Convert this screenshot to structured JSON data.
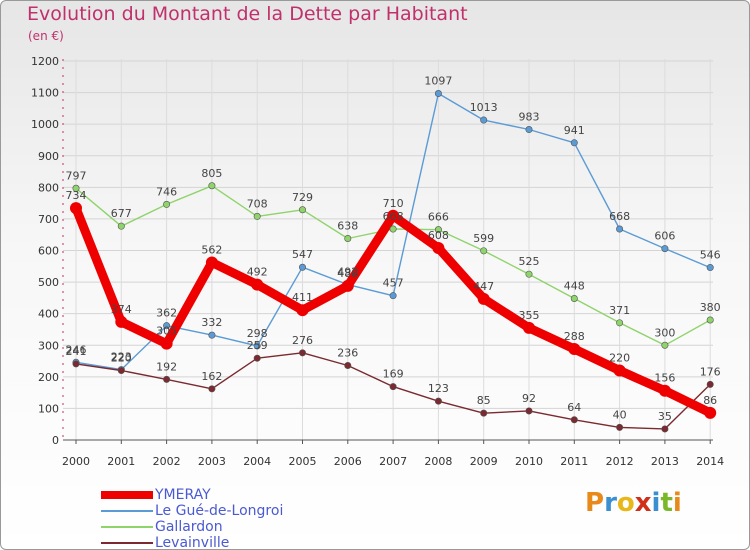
{
  "title": "Evolution du Montant de la Dette par Habitant",
  "subtitle": "(en €)",
  "logo_letters": [
    "P",
    "r",
    "o",
    "x",
    "i",
    "t",
    "i"
  ],
  "logo_colors": [
    "#e88a1a",
    "#3a8fd0",
    "#e8b81a",
    "#d0301a",
    "#3a8fd0",
    "#7ab82a",
    "#e88a1a"
  ],
  "chart_data": {
    "type": "line",
    "x": [
      "2000",
      "2001",
      "2002",
      "2003",
      "2004",
      "2005",
      "2006",
      "2007",
      "2008",
      "2009",
      "2010",
      "2011",
      "2012",
      "2013",
      "2014"
    ],
    "ylim": [
      0,
      1200
    ],
    "yticks": [
      0,
      100,
      200,
      300,
      400,
      500,
      600,
      700,
      800,
      900,
      1000,
      1100,
      1200
    ],
    "grid": true,
    "legend_position": "bottom-left",
    "series": [
      {
        "name": "YMERAY",
        "color": "#ee0000",
        "values": [
          734,
          374,
          305,
          562,
          492,
          411,
          488,
          710,
          608,
          447,
          355,
          288,
          220,
          156,
          86
        ],
        "labels": [
          "734",
          "374",
          "305",
          "562",
          "492",
          "411",
          "488",
          "710",
          "608",
          "447",
          "355",
          "288",
          "220",
          "156",
          "86"
        ]
      },
      {
        "name": "Le Gué-de-Longroi",
        "color": "#5b9bd5",
        "values": [
          246,
          223,
          362,
          332,
          298,
          547,
          492,
          457,
          1097,
          1013,
          983,
          941,
          668,
          606,
          546
        ],
        "labels": [
          "246",
          "223",
          "362",
          "332",
          "298",
          "547",
          "492",
          "457",
          "1097",
          "1013",
          "983",
          "941",
          "668",
          "606",
          "546"
        ]
      },
      {
        "name": "Gallardon",
        "color": "#8fd36b",
        "values": [
          797,
          677,
          746,
          805,
          708,
          729,
          638,
          668,
          666,
          599,
          525,
          448,
          371,
          300,
          380
        ],
        "labels": [
          "797",
          "677",
          "746",
          "805",
          "708",
          "729",
          "638",
          "668",
          "666",
          "599",
          "525",
          "448",
          "371",
          "300",
          "380"
        ]
      },
      {
        "name": "Levainville",
        "color": "#7a2a30",
        "values": [
          241,
          220,
          192,
          162,
          259,
          276,
          236,
          169,
          123,
          85,
          92,
          64,
          40,
          35,
          176
        ],
        "labels": [
          "241",
          "220",
          "192",
          "162",
          "259",
          "276",
          "236",
          "169",
          "123",
          "85",
          "92",
          "64",
          "40",
          "35",
          "176"
        ]
      }
    ]
  }
}
